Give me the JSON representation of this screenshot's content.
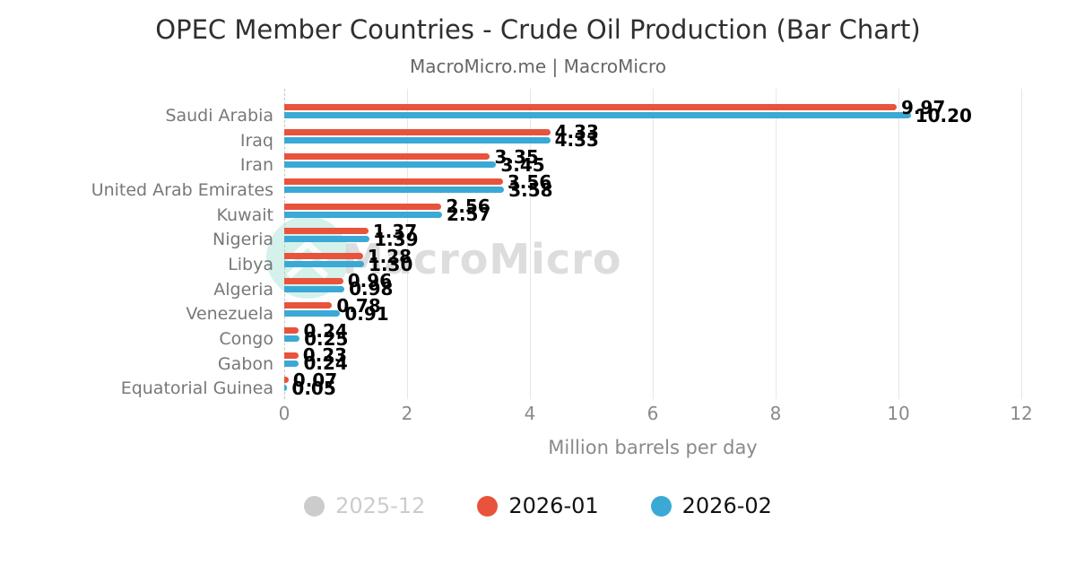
{
  "title": "OPEC Member Countries - Crude Oil Production (Bar Chart)",
  "subtitle": "MacroMicro.me | MacroMicro",
  "watermark": "MacroMicro",
  "chart_data": {
    "type": "bar",
    "orientation": "horizontal",
    "title": "OPEC Member Countries - Crude Oil Production (Bar Chart)",
    "xlabel": "Million barrels per day",
    "xlim": [
      0,
      12
    ],
    "xticks": [
      0,
      2,
      4,
      6,
      8,
      10,
      12
    ],
    "grid": true,
    "legend_position": "bottom",
    "categories": [
      "Saudi Arabia",
      "Iraq",
      "Iran",
      "United Arab Emirates",
      "Kuwait",
      "Nigeria",
      "Libya",
      "Algeria",
      "Venezuela",
      "Congo",
      "Gabon",
      "Equatorial Guinea"
    ],
    "series": [
      {
        "name": "2025-12",
        "color": "#cccccc",
        "hidden": true,
        "values": []
      },
      {
        "name": "2026-01",
        "color": "#e8533c",
        "hidden": false,
        "values": [
          9.97,
          4.33,
          3.35,
          3.56,
          2.56,
          1.37,
          1.28,
          0.96,
          0.78,
          0.24,
          0.23,
          0.07
        ]
      },
      {
        "name": "2026-02",
        "color": "#3ba9d5",
        "hidden": false,
        "values": [
          10.2,
          4.33,
          3.45,
          3.58,
          2.57,
          1.39,
          1.3,
          0.98,
          0.91,
          0.25,
          0.24,
          0.05
        ]
      }
    ]
  },
  "legend": {
    "items": [
      {
        "label": "2025-12",
        "color": "#cccccc",
        "text_color": "#cccccc",
        "active": false
      },
      {
        "label": "2026-01",
        "color": "#e8533c",
        "text_color": "#111111",
        "active": true
      },
      {
        "label": "2026-02",
        "color": "#3ba9d5",
        "text_color": "#111111",
        "active": true
      }
    ]
  },
  "colors": {
    "grid": "#e7e7e7",
    "axis_text": "#8a8a8a",
    "category_text": "#787878",
    "title_text": "#2f2f2f",
    "subtitle_text": "#666666",
    "watermark_teal": "#6fcfc0"
  }
}
